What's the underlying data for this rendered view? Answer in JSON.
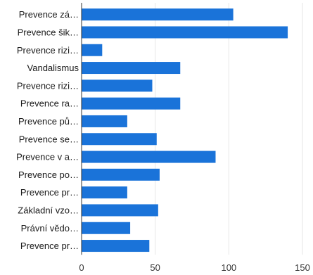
{
  "chart_data": {
    "type": "bar",
    "orientation": "horizontal",
    "categories": [
      "Prevence zá…",
      "Prevence šik…",
      "Prevence rizi…",
      "Vandalismus",
      "Prevence rizi…",
      "Prevence ra…",
      "Prevence pů…",
      "Prevence se…",
      "Prevence v a…",
      "Prevence po…",
      "Prevence pr…",
      "Základní vzo…",
      "Právní vědo…",
      "Prevence pr…"
    ],
    "values": [
      103,
      140,
      14,
      67,
      48,
      67,
      31,
      51,
      91,
      53,
      31,
      52,
      33,
      46
    ],
    "xlim": [
      0,
      150
    ],
    "xticks": [
      "0",
      "50",
      "100",
      "150"
    ],
    "grid": true,
    "legend": "none",
    "colors": {
      "bar": "#1a73d9",
      "grid": "#e6e6e6",
      "axis": "#333333"
    }
  }
}
